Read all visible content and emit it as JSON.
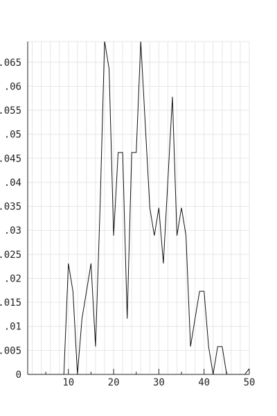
{
  "chart_data": {
    "type": "line",
    "title": "",
    "xlabel": "",
    "ylabel": "",
    "xlim": [
      1,
      50
    ],
    "ylim": [
      0,
      0.0693
    ],
    "grid": true,
    "x_ticks": [
      10,
      20,
      30,
      40,
      50
    ],
    "x_tick_labels": [
      "10",
      "20",
      "30",
      "40",
      "50"
    ],
    "y_ticks": [
      0,
      0.005,
      0.01,
      0.015,
      0.02,
      0.025,
      0.03,
      0.035,
      0.04,
      0.045,
      0.05,
      0.055,
      0.06,
      0.065
    ],
    "y_tick_labels": [
      "0",
      ".005",
      ".01",
      ".015",
      ".02",
      ".025",
      ".03",
      ".035",
      ".04",
      ".045",
      ".05",
      ".055",
      ".06",
      ".065"
    ],
    "line_color": "#111111",
    "series": [
      {
        "x": [
          1,
          2,
          3,
          4,
          5,
          6,
          7,
          8,
          9,
          10,
          11,
          12,
          13,
          14,
          15,
          16,
          17,
          18,
          19,
          20,
          21,
          22,
          23,
          24,
          25,
          26,
          27,
          28,
          29,
          30,
          31,
          32,
          33,
          34,
          35,
          36,
          37,
          38,
          39,
          40,
          41,
          42,
          43,
          44,
          45,
          46,
          47,
          48,
          49,
          50
        ],
        "y": [
          0,
          0,
          0,
          0,
          0,
          0,
          0,
          0,
          0,
          0.0231,
          0.0173,
          0,
          0.0116,
          0.0173,
          0.0231,
          0.0058,
          0.0347,
          0.0694,
          0.0636,
          0.0289,
          0.0462,
          0.0462,
          0.0116,
          0.0462,
          0.0462,
          0.0694,
          0.052,
          0.0347,
          0.0289,
          0.0347,
          0.0231,
          0.0405,
          0.0578,
          0.0289,
          0.0347,
          0.0289,
          0.0058,
          0.0116,
          0.0173,
          0.0173,
          0.0058,
          0,
          0.0058,
          0.0058,
          0,
          0,
          0,
          0,
          0,
          0.0012
        ]
      }
    ]
  }
}
